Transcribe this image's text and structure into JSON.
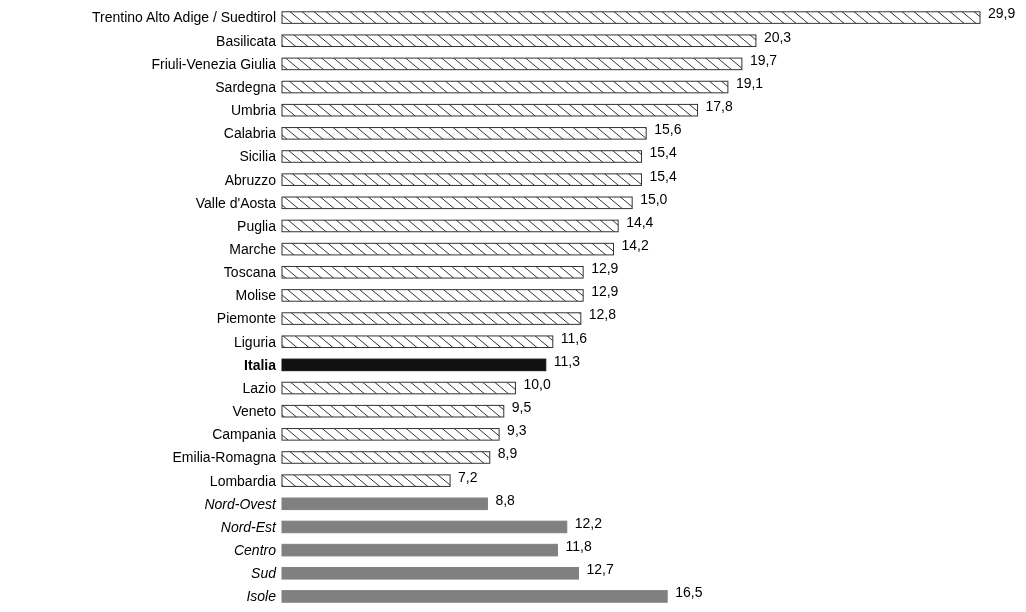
{
  "chart_data": {
    "type": "bar",
    "orientation": "horizontal",
    "categories": [
      "Trentino Alto Adige / Suedtirol",
      "Basilicata",
      "Friuli-Venezia Giulia",
      "Sardegna",
      "Umbria",
      "Calabria",
      "Sicilia",
      "Abruzzo",
      "Valle d'Aosta",
      "Puglia",
      "Marche",
      "Toscana",
      "Molise",
      "Piemonte",
      "Liguria",
      "Italia",
      "Lazio",
      "Veneto",
      "Campania",
      "Emilia-Romagna",
      "Lombardia",
      "Nord-Ovest",
      "Nord-Est",
      "Centro",
      "Sud",
      "Isole"
    ],
    "values": [
      29.9,
      20.3,
      19.7,
      19.1,
      17.8,
      15.6,
      15.4,
      15.4,
      15.0,
      14.4,
      14.2,
      12.9,
      12.9,
      12.8,
      11.6,
      11.3,
      10.0,
      9.5,
      9.3,
      8.9,
      7.2,
      8.8,
      12.2,
      11.8,
      12.7,
      16.5
    ],
    "value_labels": [
      "29,9",
      "20,3",
      "19,7",
      "19,1",
      "17,8",
      "15,6",
      "15,4",
      "15,4",
      "15,0",
      "14,4",
      "14,2",
      "12,9",
      "12,9",
      "12,8",
      "11,6",
      "11,3",
      "10,0",
      "9,5",
      "9,3",
      "8,9",
      "7,2",
      "8,8",
      "12,2",
      "11,8",
      "12,7",
      "16,5"
    ],
    "colors": [
      "#333333",
      "#333333",
      "#333333",
      "#333333",
      "#333333",
      "#333333",
      "#333333",
      "#333333",
      "#333333",
      "#333333",
      "#333333",
      "#333333",
      "#333333",
      "#333333",
      "#333333",
      "#111111",
      "#333333",
      "#333333",
      "#333333",
      "#333333",
      "#333333",
      "#808080",
      "#808080",
      "#808080",
      "#808080",
      "#808080"
    ]
  }
}
